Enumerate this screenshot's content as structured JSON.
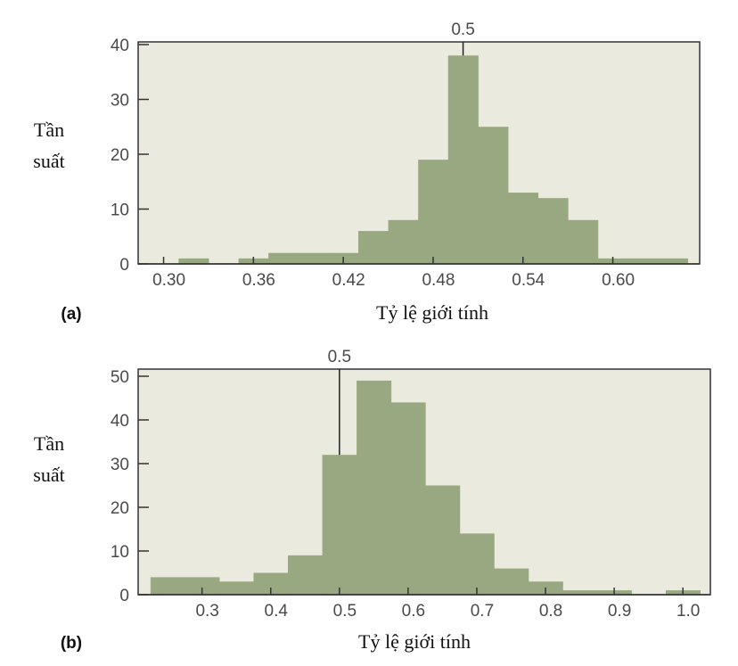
{
  "colors": {
    "plot_background": "#ebeadf",
    "bar": "#98a880",
    "axis": "#333333"
  },
  "chart_data": [
    {
      "type": "bar",
      "panel_label": "(a)",
      "xlabel": "Tỷ lệ giới tính",
      "ylabel_line1": "Tần",
      "ylabel_line2": "suất",
      "marker_value": 0.5,
      "marker_label": "0.5",
      "bin_edges_start": 0.31,
      "bin_width": 0.02,
      "values": [
        1,
        0,
        1,
        2,
        2,
        2,
        6,
        8,
        19,
        38,
        25,
        13,
        12,
        8,
        1,
        1,
        1
      ],
      "xlim": [
        0.283,
        0.658
      ],
      "ylim": [
        0,
        40
      ],
      "xticks": [
        0.3,
        0.36,
        0.42,
        0.48,
        0.54,
        0.6
      ],
      "xtick_labels": [
        "0.30",
        "0.36",
        "0.42",
        "0.48",
        "0.54",
        "0.60"
      ],
      "yticks": [
        0,
        10,
        20,
        30,
        40
      ],
      "ytick_labels": [
        "0",
        "10",
        "20",
        "30",
        "40"
      ],
      "grid": false
    },
    {
      "type": "bar",
      "panel_label": "(b)",
      "xlabel": "Tỷ lệ giới tính",
      "ylabel_line1": "Tần",
      "ylabel_line2": "suất",
      "marker_value": 0.5,
      "marker_label": "0.5",
      "bin_edges_start": 0.225,
      "bin_width": 0.05,
      "values": [
        4,
        4,
        3,
        5,
        9,
        32,
        49,
        44,
        25,
        14,
        6,
        3,
        1,
        1,
        0,
        1
      ],
      "xlim": [
        0.207,
        1.04
      ],
      "ylim": [
        0,
        50
      ],
      "xticks": [
        0.3,
        0.4,
        0.5,
        0.6,
        0.7,
        0.8,
        0.9,
        1.0
      ],
      "xtick_labels": [
        "0.3",
        "0.4",
        "0.5",
        "0.6",
        "0.7",
        "0.8",
        "0.9",
        "1.0"
      ],
      "yticks": [
        0,
        10,
        20,
        30,
        40,
        50
      ],
      "ytick_labels": [
        "0",
        "10",
        "20",
        "30",
        "40",
        "50"
      ],
      "grid": false
    }
  ]
}
